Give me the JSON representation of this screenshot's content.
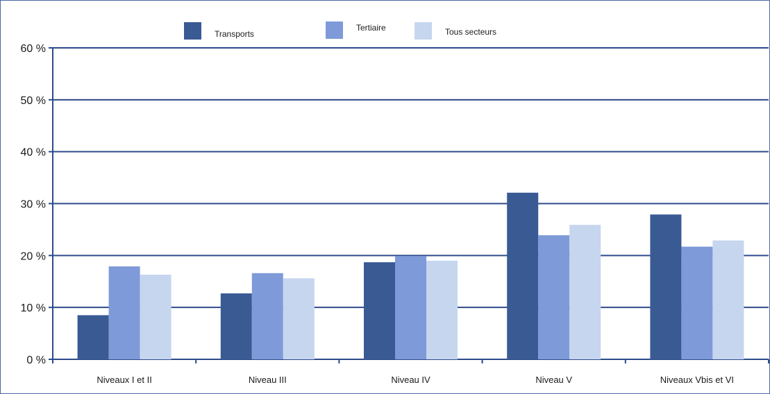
{
  "chart_data": {
    "type": "bar",
    "title": "",
    "xlabel": "",
    "ylabel": "",
    "ylim": [
      0,
      60
    ],
    "ytick_step": 10,
    "y_unit": " %",
    "grid": true,
    "legend_position": "top",
    "categories": [
      "Niveaux I et II",
      "Niveau III",
      "Niveau IV",
      "Niveau V",
      "Niveaux Vbis et VI"
    ],
    "series": [
      {
        "name": "Transports",
        "color": "#3a5a94",
        "values": [
          8.5,
          12.7,
          18.7,
          32.1,
          27.9
        ]
      },
      {
        "name": "Tertiaire",
        "color": "#7e9ad8",
        "values": [
          17.9,
          16.6,
          19.9,
          23.9,
          21.7
        ]
      },
      {
        "name": "Tous secteurs",
        "color": "#c6d6ef",
        "values": [
          16.3,
          15.6,
          19.0,
          25.9,
          22.9
        ]
      }
    ],
    "axis_color": "#2c4a8a",
    "frame_color": "#4a67a8"
  }
}
